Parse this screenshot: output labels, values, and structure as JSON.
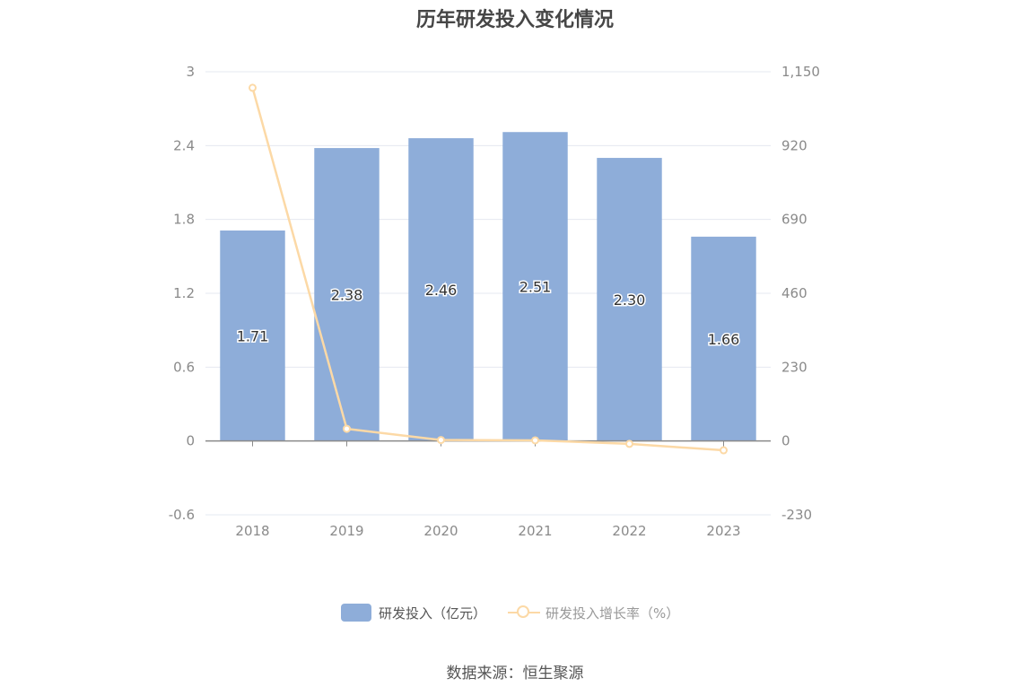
{
  "title": "历年研发投入变化情况",
  "source": "数据来源：恒生聚源",
  "colors": {
    "bar": "#8eadd9",
    "line": "#fcd9a6",
    "grid": "#e4e8f0",
    "axis": "#8a8a8a"
  },
  "legend": {
    "bar_label": "研发投入（亿元）",
    "line_label": "研发投入增长率（%）"
  },
  "chart_data": {
    "type": "bar",
    "categories": [
      "2018",
      "2019",
      "2020",
      "2021",
      "2022",
      "2023"
    ],
    "series": [
      {
        "name": "研发投入（亿元）",
        "type": "bar",
        "axis": "left",
        "values": [
          1.71,
          2.38,
          2.46,
          2.51,
          2.3,
          1.66
        ],
        "labels": [
          "1.71",
          "2.38",
          "2.46",
          "2.51",
          "2.30",
          "1.66"
        ]
      },
      {
        "name": "研发投入增长率（%）",
        "type": "line",
        "axis": "right",
        "values": [
          1100,
          38,
          3,
          2,
          -9,
          -29
        ]
      }
    ],
    "y_left": {
      "min": -0.6,
      "max": 3,
      "ticks": [
        "3",
        "2.4",
        "1.8",
        "1.2",
        "0.6",
        "0",
        "-0.6"
      ]
    },
    "y_right": {
      "min": -230,
      "max": 1150,
      "ticks": [
        "1,150",
        "920",
        "690",
        "460",
        "230",
        "0",
        "-230"
      ]
    },
    "grid": true,
    "legend_position": "bottom"
  }
}
